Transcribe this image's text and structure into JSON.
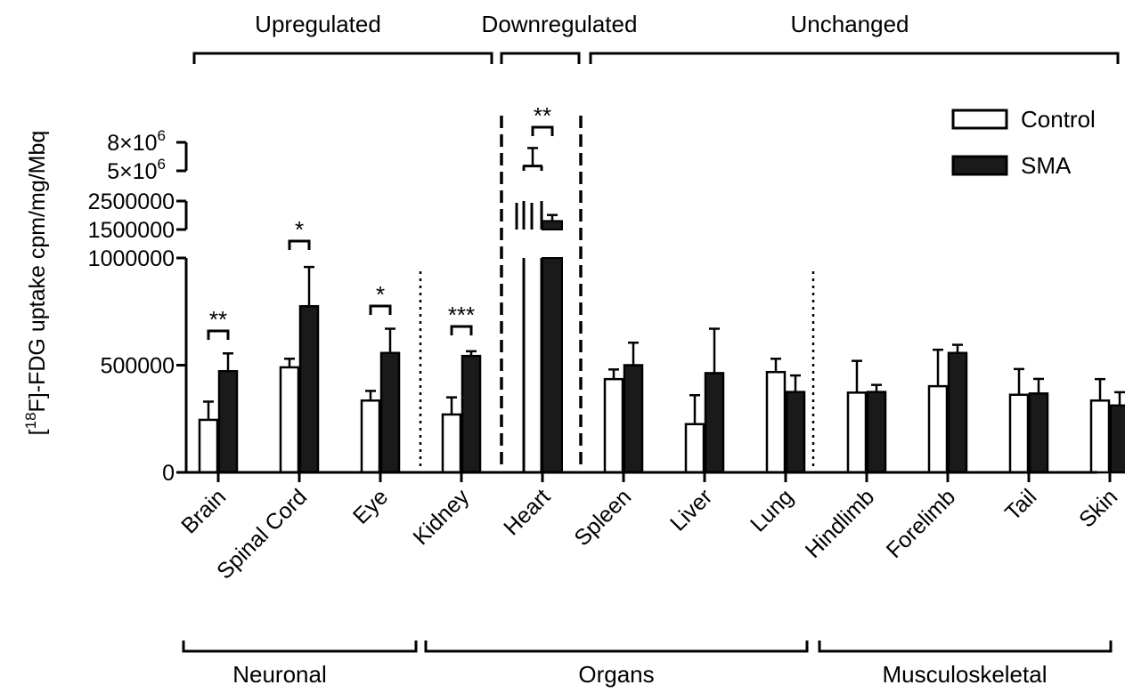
{
  "chart_data": {
    "type": "bar",
    "title": "",
    "xlabel": "",
    "ylabel_sup": "18",
    "ylabel_pre": "[",
    "ylabel_post": "F]-FDG uptake cpm/mg/Mbq",
    "categories": [
      "Brain",
      "Spinal Cord",
      "Eye",
      "Kidney",
      "Heart",
      "Spleen",
      "Liver",
      "Lung",
      "Hindlimb",
      "Forelimb",
      "Tail",
      "Skin"
    ],
    "series": [
      {
        "name": "Control",
        "fill": "#ffffff",
        "values": [
          245000,
          490000,
          335000,
          270000,
          5500000,
          435000,
          225000,
          468000,
          372000,
          402000,
          362000,
          335000
        ],
        "errors": [
          85000,
          40000,
          45000,
          80000,
          1900000,
          45000,
          135000,
          62000,
          148000,
          170000,
          120000,
          100000
        ]
      },
      {
        "name": "SMA",
        "fill": "#1a1a1a",
        "values": [
          472000,
          775000,
          557000,
          543000,
          1800000,
          500000,
          463000,
          375000,
          375000,
          557000,
          368000,
          312000
        ],
        "errors": [
          83000,
          183000,
          113000,
          22000,
          210000,
          105000,
          207000,
          77000,
          33000,
          38000,
          68000,
          62000
        ]
      }
    ],
    "y_axis_segments": [
      {
        "range": [
          0,
          1000000
        ],
        "ticks": [
          {
            "value": 0,
            "label": "0"
          },
          {
            "value": 500000,
            "label": "500000"
          },
          {
            "value": 1000000,
            "label": "1000000"
          }
        ]
      },
      {
        "range": [
          1500000,
          2500000
        ],
        "ticks": [
          {
            "value": 1500000,
            "label": "1500000"
          },
          {
            "value": 2500000,
            "label": "2500000"
          }
        ]
      },
      {
        "range": [
          5000000,
          8000000
        ],
        "ticks": [
          {
            "value": 5000000,
            "label": "5×10",
            "sup": "6"
          },
          {
            "value": 8000000,
            "label": "8×10",
            "sup": "6"
          }
        ]
      }
    ],
    "legend": {
      "placement": "top-right",
      "entries": [
        "Control",
        "SMA"
      ]
    },
    "significance": [
      {
        "category": "Brain",
        "label": "**"
      },
      {
        "category": "Spinal Cord",
        "label": "*"
      },
      {
        "category": "Eye",
        "label": "*"
      },
      {
        "category": "Kidney",
        "label": "***"
      },
      {
        "category": "Heart",
        "label": "**"
      }
    ],
    "top_groups": [
      {
        "label": "Upregulated",
        "from": "Brain",
        "to": "Kidney"
      },
      {
        "label": "Downregulated",
        "from": "Heart",
        "to": "Heart"
      },
      {
        "label": "Unchanged",
        "from": "Spleen",
        "to": "Skin"
      }
    ],
    "bottom_groups": [
      {
        "label": "Neuronal",
        "from": "Brain",
        "to": "Eye"
      },
      {
        "label": "Organs",
        "from": "Kidney",
        "to": "Lung"
      },
      {
        "label": "Musculoskeletal",
        "from": "Hindlimb",
        "to": "Skin"
      }
    ],
    "grid": false
  }
}
